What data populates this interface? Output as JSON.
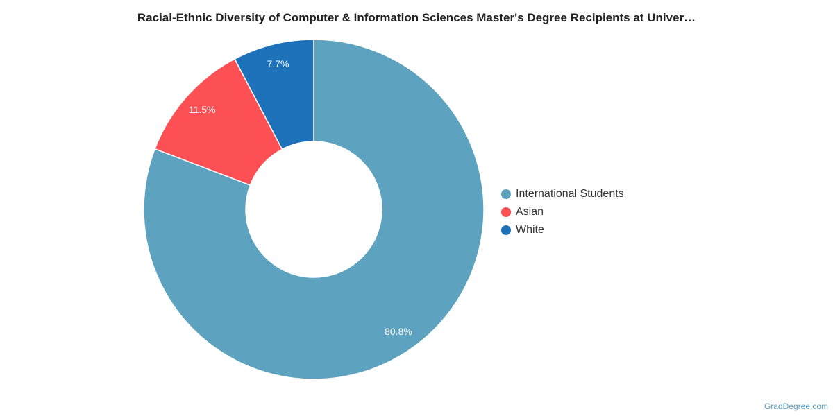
{
  "chart_data": {
    "type": "pie",
    "title": "Racial-Ethnic Diversity of Computer & Information Sciences Master's Degree Recipients at Univer…",
    "categories": [
      "International Students",
      "Asian",
      "White"
    ],
    "values": [
      80.8,
      11.5,
      7.7
    ],
    "labels": [
      "80.8%",
      "11.5%",
      "7.7%"
    ],
    "colors": [
      "#5da2bf",
      "#fd5054",
      "#1e72b9"
    ],
    "donut": true,
    "legend_position": "right"
  },
  "credit": "GradDegree.com"
}
